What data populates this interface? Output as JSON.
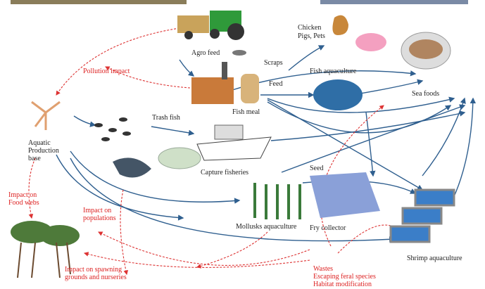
{
  "labels": {
    "agro_feed": "Agro feed",
    "chicken_pigs_pets": [
      "Chicken",
      "Pigs, Pets"
    ],
    "scraps": "Scraps",
    "feed": "Feed",
    "fish_aquaculture": "Fish aquaculture",
    "sea_foods": "Sea foods",
    "pollution_impact": "Pollution impact",
    "fish_meal": "Fish meal",
    "trash_fish": "Trash fish",
    "aquatic_production_base": [
      "Aquatic",
      "Production",
      "base"
    ],
    "capture_fisheries": "Capture fisheries",
    "seed": "Seed",
    "impact_on_food_webs": [
      "Impact on",
      "Food webs"
    ],
    "impact_on_populations": [
      "Impact on",
      "populations"
    ],
    "mollusks_aquaculture": "Mollusks aquaculture",
    "fry_collector": "Fry collector",
    "shrimp_aquaculture": "Shrimp aquaculture",
    "impact_on_spawning": [
      "Impact on spawning",
      "grounds and nurseries"
    ],
    "wastes": [
      "Wastes",
      "Escaping feral species",
      "Habitat modification"
    ]
  }
}
